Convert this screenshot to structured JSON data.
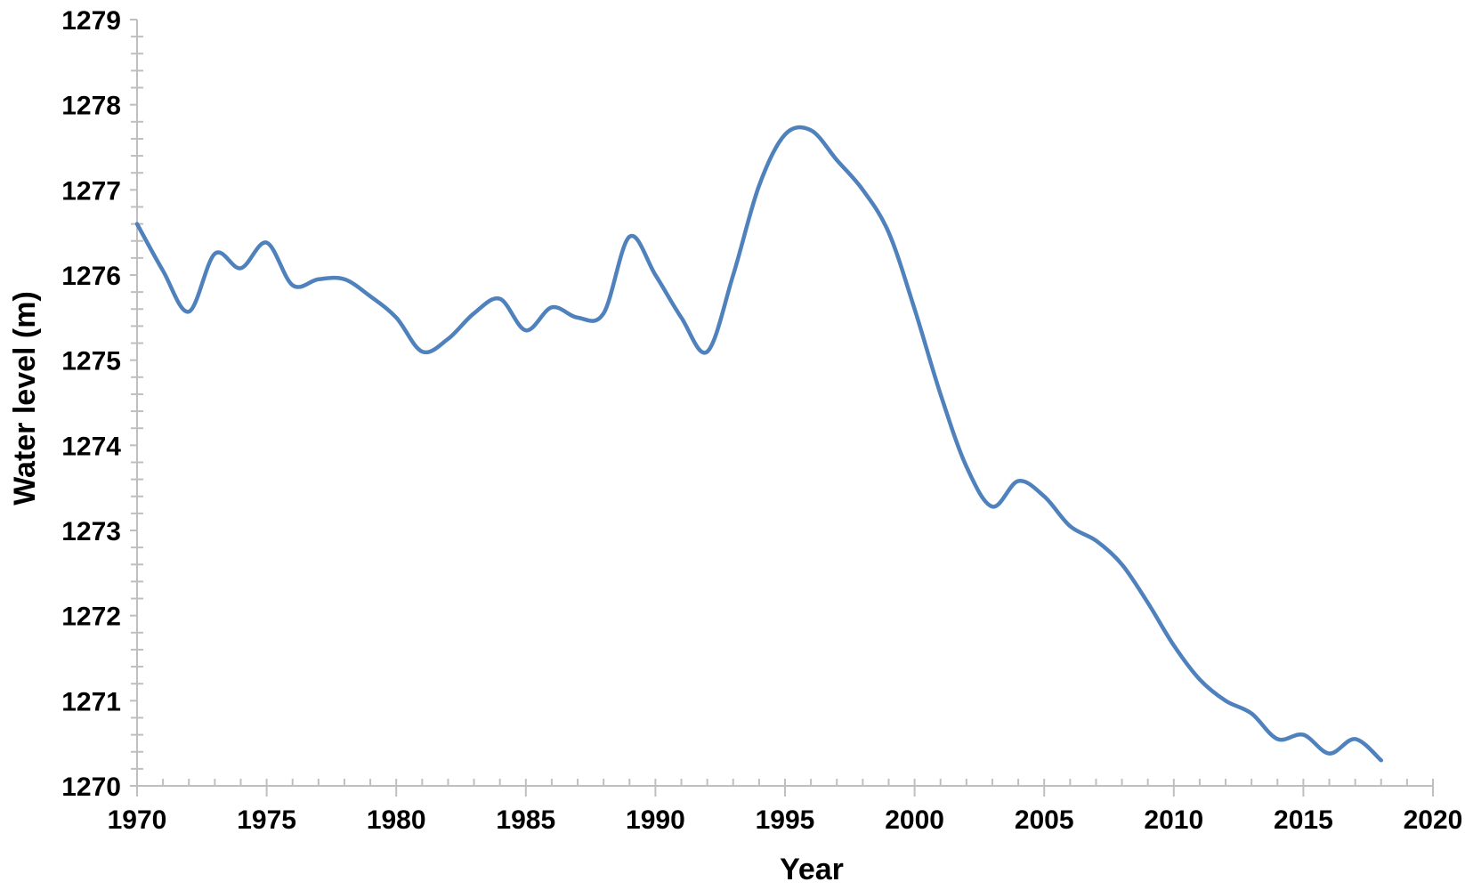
{
  "chart_data": {
    "type": "line",
    "title": "",
    "xlabel": "Year",
    "ylabel": "Water level (m)",
    "xlim": [
      1970,
      2020
    ],
    "ylim": [
      1270,
      1279
    ],
    "x_ticks": [
      "1970",
      "1975",
      "1980",
      "1985",
      "1990",
      "1995",
      "2000",
      "2005",
      "2010",
      "2015",
      "2020"
    ],
    "y_ticks": [
      "1270",
      "1271",
      "1272",
      "1273",
      "1274",
      "1275",
      "1276",
      "1277",
      "1278",
      "1279"
    ],
    "x_minor_step": 1,
    "y_minor_step": 0.2,
    "grid": false,
    "legend": "none",
    "series": [
      {
        "color": "#4f81bd",
        "x": [
          1970,
          1971,
          1972,
          1973,
          1974,
          1975,
          1976,
          1977,
          1978,
          1979,
          1980,
          1981,
          1982,
          1983,
          1984,
          1985,
          1986,
          1987,
          1988,
          1989,
          1990,
          1991,
          1992,
          1993,
          1994,
          1995,
          1996,
          1997,
          1998,
          1999,
          2000,
          2001,
          2002,
          2003,
          2004,
          2005,
          2006,
          2007,
          2008,
          2009,
          2010,
          2011,
          2012,
          2013,
          2014,
          2015,
          2016,
          2017,
          2018
        ],
        "values": [
          1276.6,
          1276.05,
          1275.57,
          1276.25,
          1276.08,
          1276.38,
          1275.88,
          1275.95,
          1275.95,
          1275.75,
          1275.5,
          1275.1,
          1275.25,
          1275.55,
          1275.72,
          1275.35,
          1275.62,
          1275.5,
          1275.55,
          1276.45,
          1276.0,
          1275.5,
          1275.1,
          1276.0,
          1277.05,
          1277.65,
          1277.7,
          1277.35,
          1277.0,
          1276.5,
          1275.6,
          1274.6,
          1273.75,
          1273.28,
          1273.58,
          1273.4,
          1273.05,
          1272.88,
          1272.6,
          1272.15,
          1271.65,
          1271.25,
          1271.0,
          1270.85,
          1270.55,
          1270.6,
          1270.38,
          1270.55,
          1270.3
        ]
      }
    ]
  }
}
